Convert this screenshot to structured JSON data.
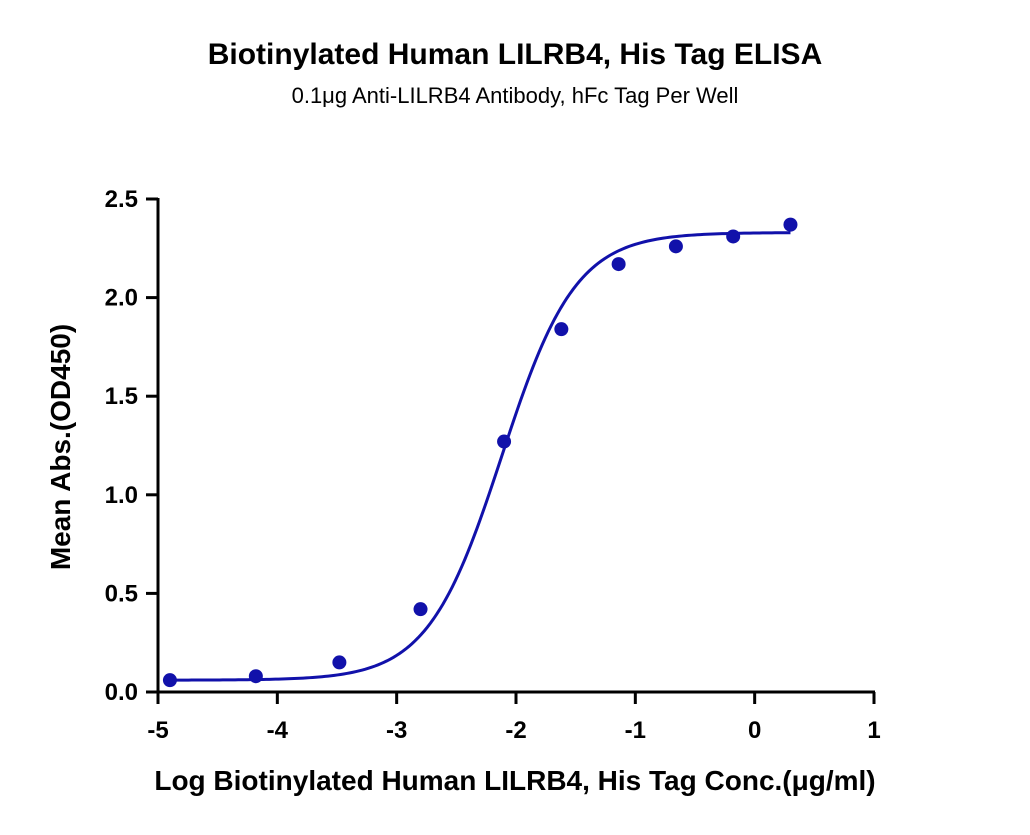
{
  "chart_data": {
    "type": "scatter",
    "title": "Biotinylated Human LILRB4, His Tag ELISA",
    "subtitle": "0.1μg Anti-LILRB4 Antibody, hFc Tag Per Well",
    "xlabel": "Log Biotinylated Human LILRB4, His Tag Conc.(μg/ml)",
    "ylabel": "Mean Abs.(OD450)",
    "xlim": [
      -5,
      1
    ],
    "ylim": [
      0,
      2.5
    ],
    "xticks": [
      "-5",
      "-4",
      "-3",
      "-2",
      "-1",
      "0",
      "1"
    ],
    "yticks": [
      "0.0",
      "0.5",
      "1.0",
      "1.5",
      "2.0",
      "2.5"
    ],
    "grid": false,
    "color": "#1111aa",
    "points": {
      "x": [
        -4.9,
        -4.18,
        -3.48,
        -2.8,
        -2.1,
        -1.62,
        -1.14,
        -0.66,
        -0.18,
        0.3
      ],
      "y": [
        0.06,
        0.08,
        0.15,
        0.42,
        1.27,
        1.84,
        2.17,
        2.26,
        2.31,
        2.37
      ]
    },
    "fit": {
      "type": "4PL",
      "bottom": 0.06,
      "top": 2.33,
      "logEC50": -2.12,
      "hill": 1.4
    }
  }
}
